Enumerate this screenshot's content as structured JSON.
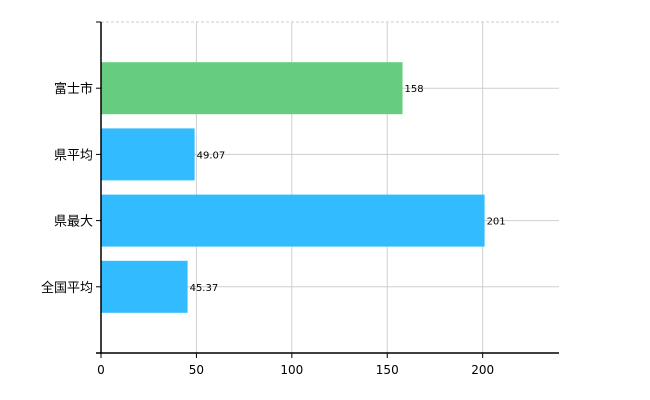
{
  "chart_data": {
    "type": "bar",
    "orientation": "horizontal",
    "categories": [
      "富士市",
      "県平均",
      "県最大",
      "全国平均"
    ],
    "values": [
      158,
      49.07,
      201,
      45.37
    ],
    "value_labels": [
      "158",
      "49.07",
      "201",
      "45.37"
    ],
    "colors": [
      "#66cc80",
      "#33bbff",
      "#33bbff",
      "#33bbff"
    ],
    "xlim": [
      0,
      240
    ],
    "xticks": [
      0,
      50,
      100,
      150,
      200
    ],
    "xtick_labels": [
      "0",
      "50",
      "100",
      "150",
      "200"
    ],
    "grid": true,
    "title": "",
    "xlabel": "",
    "ylabel": ""
  }
}
